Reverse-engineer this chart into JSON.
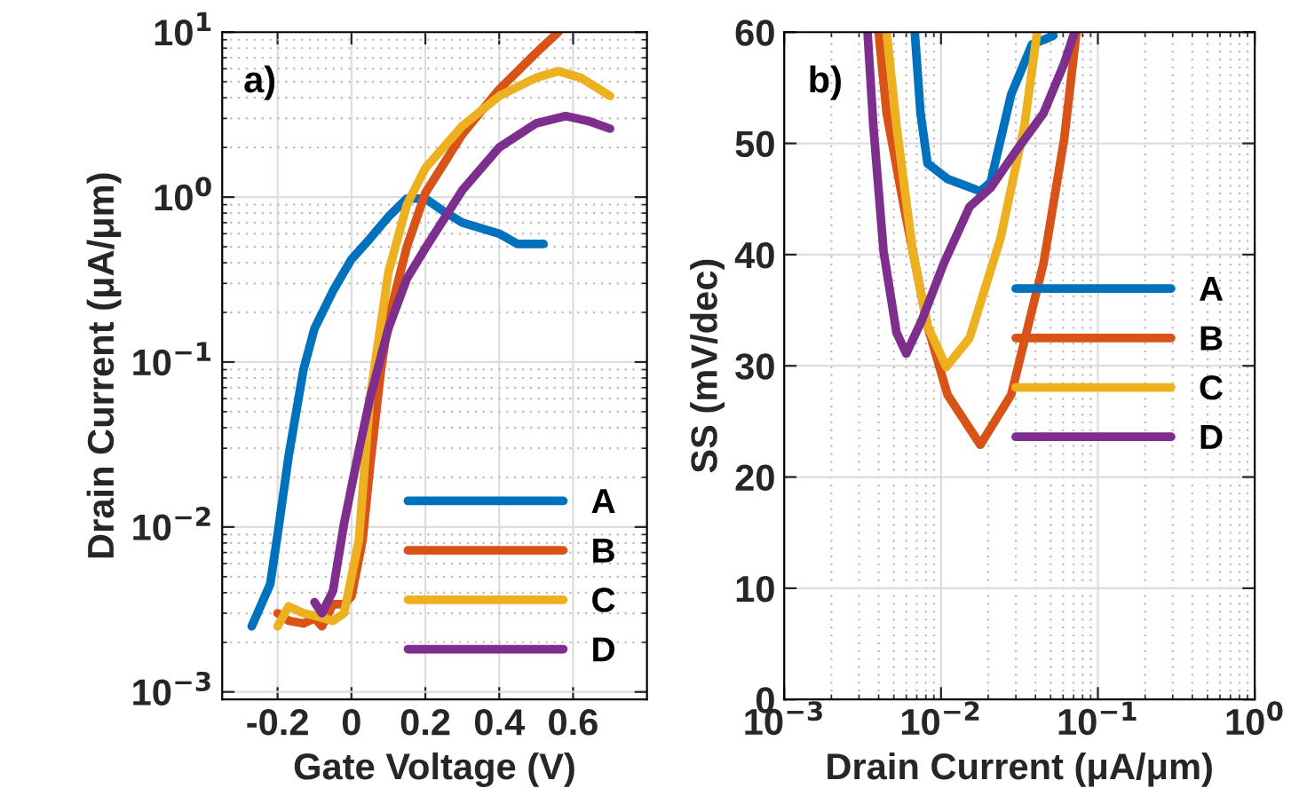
{
  "chart_data": [
    {
      "type": "line",
      "xlabel": "Gate Voltage (V)",
      "ylabel": "Drain Current (μA/μm)",
      "annotations": [
        "a)"
      ],
      "log": "y",
      "grid": true,
      "legend": "bottom right",
      "line_style": "solid",
      "marker": "none",
      "xlim": [
        -0.35,
        0.8
      ],
      "xticks": [
        -0.2,
        0,
        0.2,
        0.4,
        0.6
      ],
      "ylim": [
        0.0009,
        10
      ],
      "yticks": [
        {
          "value": 0.001,
          "label": "10$^{−3}$"
        },
        {
          "value": 0.01,
          "label": "10$^{−2}$"
        },
        {
          "value": 0.1,
          "label": "10$^{−1}$"
        },
        {
          "value": 1,
          "label": "10$^{0}$"
        },
        {
          "value": 10,
          "label": "10$^{1}$"
        }
      ],
      "series": [
        {
          "name": "A",
          "color": "#0072bd",
          "x": [
            -0.27,
            -0.22,
            -0.2,
            -0.17,
            -0.13,
            -0.1,
            -0.05,
            0,
            0.05,
            0.1,
            0.15,
            0.2,
            0.25,
            0.3,
            0.4,
            0.45,
            0.52
          ],
          "values": [
            0.0025,
            0.0045,
            0.009,
            0.027,
            0.09,
            0.16,
            0.27,
            0.42,
            0.56,
            0.76,
            0.98,
            0.98,
            0.82,
            0.7,
            0.6,
            0.52,
            0.52
          ]
        },
        {
          "name": "B",
          "color": "#d95319",
          "x": [
            -0.2,
            -0.17,
            -0.13,
            -0.1,
            -0.08,
            -0.05,
            -0.02,
            0,
            0.03,
            0.05,
            0.08,
            0.1,
            0.15,
            0.2,
            0.3,
            0.4,
            0.5,
            0.56
          ],
          "values": [
            0.003,
            0.0027,
            0.0026,
            0.0028,
            0.0025,
            0.0034,
            0.0034,
            0.0038,
            0.0083,
            0.023,
            0.09,
            0.18,
            0.5,
            1.06,
            2.4,
            4.5,
            7.5,
            10
          ]
        },
        {
          "name": "C",
          "color": "#edb120",
          "x": [
            -0.2,
            -0.17,
            -0.13,
            -0.1,
            -0.05,
            -0.02,
            0.02,
            0.05,
            0.1,
            0.15,
            0.2,
            0.3,
            0.4,
            0.5,
            0.56,
            0.62,
            0.7
          ],
          "values": [
            0.0025,
            0.0033,
            0.003,
            0.0029,
            0.0027,
            0.003,
            0.0083,
            0.06,
            0.35,
            0.9,
            1.5,
            2.7,
            4.1,
            5.3,
            5.8,
            5.3,
            4.1
          ]
        },
        {
          "name": "D",
          "color": "#7e2f8e",
          "x": [
            -0.1,
            -0.08,
            -0.05,
            -0.02,
            0.02,
            0.05,
            0.1,
            0.15,
            0.2,
            0.3,
            0.4,
            0.5,
            0.58,
            0.64,
            0.7
          ],
          "values": [
            0.0035,
            0.003,
            0.0041,
            0.0105,
            0.029,
            0.06,
            0.16,
            0.32,
            0.49,
            1.1,
            2.0,
            2.8,
            3.1,
            2.9,
            2.6
          ]
        }
      ]
    },
    {
      "type": "line",
      "xlabel": "Drain Current (μA/μm)",
      "ylabel": "SS (mV/dec)",
      "annotations": [
        "b)"
      ],
      "log": "x",
      "grid": true,
      "legend": "right",
      "line_style": "solid",
      "marker": "none",
      "xlim": [
        0.001,
        1
      ],
      "xticks": [
        {
          "value": 0.001,
          "label": "10$^{−3}$"
        },
        {
          "value": 0.01,
          "label": "10$^{−2}$"
        },
        {
          "value": 0.1,
          "label": "10$^{−1}$"
        },
        {
          "value": 1,
          "label": "10$^{0}$"
        }
      ],
      "ylim": [
        0,
        60
      ],
      "yticks": [
        0,
        10,
        20,
        30,
        40,
        50,
        60
      ],
      "series": [
        {
          "name": "A",
          "color": "#0072bd",
          "x": [
            0.0068,
            0.0074,
            0.0082,
            0.011,
            0.0178,
            0.0207,
            0.028,
            0.038,
            0.045,
            0.052
          ],
          "values": [
            60,
            52.7,
            48.2,
            46.8,
            45.7,
            46.5,
            54.4,
            58.9,
            59.3,
            59.7
          ]
        },
        {
          "name": "B",
          "color": "#d95319",
          "x": [
            0.004,
            0.0045,
            0.0058,
            0.0082,
            0.011,
            0.0178,
            0.028,
            0.045,
            0.061,
            0.073
          ],
          "values": [
            60,
            52.7,
            44.3,
            33.6,
            27.4,
            22.9,
            27.4,
            39.2,
            50.4,
            60
          ]
        },
        {
          "name": "C",
          "color": "#edb120",
          "x": [
            0.0045,
            0.0052,
            0.0066,
            0.0082,
            0.0108,
            0.0152,
            0.024,
            0.034,
            0.041
          ],
          "values": [
            60,
            51.6,
            40.3,
            33.6,
            29.9,
            32.5,
            41.5,
            51.6,
            60
          ]
        },
        {
          "name": "D",
          "color": "#7e2f8e",
          "x": [
            0.0034,
            0.0037,
            0.0043,
            0.0052,
            0.006,
            0.0076,
            0.0104,
            0.0152,
            0.0207,
            0.03,
            0.045,
            0.061,
            0.071
          ],
          "values": [
            60,
            51.6,
            40.3,
            33.0,
            31.1,
            34.2,
            39.2,
            44.3,
            46.0,
            49.3,
            52.7,
            57.2,
            60
          ]
        }
      ]
    }
  ]
}
